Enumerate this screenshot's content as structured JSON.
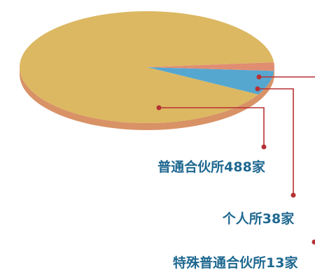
{
  "chart_data": {
    "type": "pie",
    "categories": [
      "普通合伙所",
      "个人所",
      "特殊普通合伙所"
    ],
    "values": [
      488,
      38,
      13
    ],
    "unit": "家",
    "labels": [
      "普通合伙所488家",
      "个人所38家",
      "特殊普通合伙所13家"
    ],
    "colors": [
      "#dcb862",
      "#55a7d0",
      "#e08d72"
    ],
    "style": "3d-tilted-pie",
    "legend": "none",
    "leader_line_color": "#b73132",
    "label_color": "#1f6890"
  }
}
